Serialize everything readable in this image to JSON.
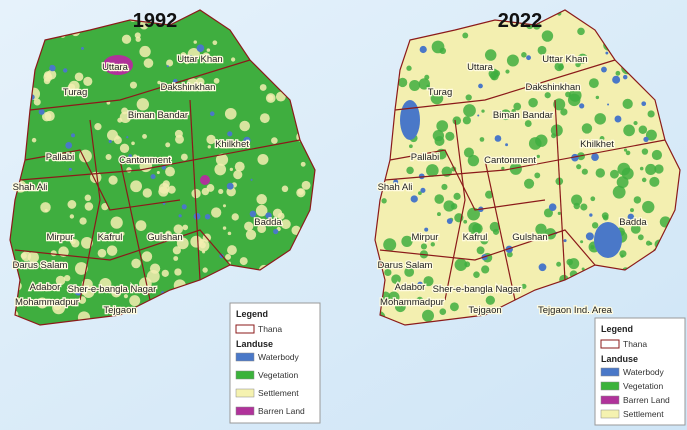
{
  "maps": [
    {
      "year": "1992",
      "thanas": [
        "Uttara",
        "Uttar Khan",
        "Turag",
        "Dakshinkhan",
        "Biman Bandar",
        "Pallabi",
        "Khilkhet",
        "Cantonment",
        "Shah Ali",
        "Badda",
        "Mirpur",
        "Kafrul",
        "Gulshan",
        "Darus Salam",
        "Adabor",
        "Sher-e-bangla Nagar",
        "Mohammadpur",
        "Tejgaon"
      ],
      "legend": {
        "title": "Legend",
        "thana": "Thana",
        "landuse": "Landuse",
        "items": [
          {
            "label": "Waterbody",
            "color": "#4a78c8"
          },
          {
            "label": "Vegetation",
            "color": "#3bb23b"
          },
          {
            "label": "Settlement",
            "color": "#f5f2b0"
          },
          {
            "label": "Barren Land",
            "color": "#b0329a"
          }
        ]
      }
    },
    {
      "year": "2022",
      "thanas": [
        "Uttara",
        "Uttar Khan",
        "Turag",
        "Dakshinkhan",
        "Biman Bandar",
        "Pallabi",
        "Khilkhet",
        "Cantonment",
        "Shah Ali",
        "Badda",
        "Mirpur",
        "Kafrul",
        "Gulshan",
        "Darus Salam",
        "Adabor",
        "Sher-e-bangla Nagar",
        "Mohammadpur",
        "Tejgaon",
        "Tejgaon Ind. Area"
      ],
      "legend": {
        "title": "Legend",
        "thana": "Thana",
        "landuse": "Landuse",
        "items": [
          {
            "label": "Waterbody",
            "color": "#4a78c8"
          },
          {
            "label": "Vegetation",
            "color": "#3bb23b"
          },
          {
            "label": "Barren Land",
            "color": "#b0329a"
          },
          {
            "label": "Settlement",
            "color": "#f5f2b0"
          }
        ]
      }
    }
  ]
}
